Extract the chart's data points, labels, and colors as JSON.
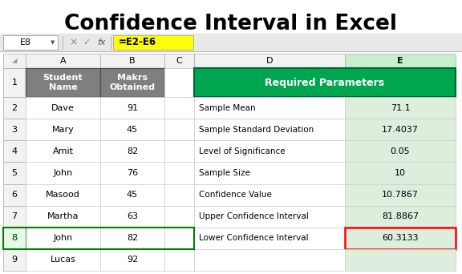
{
  "title": "Confidence Interval in Excel",
  "title_fontsize": 19,
  "title_fontweight": "bold",
  "bg_color": "#FFFFFF",
  "formula_bar_cell": "E8",
  "formula_bar_formula": "=E2-E6",
  "formula_bar_bg": "#FFFF00",
  "left_table": {
    "header_row": [
      "Student\nName",
      "Makrs\nObtained"
    ],
    "header_bg": "#7F7F7F",
    "header_fg": "#FFFFFF",
    "data": [
      [
        "Dave",
        "91"
      ],
      [
        "Mary",
        "45"
      ],
      [
        "Amit",
        "82"
      ],
      [
        "John",
        "76"
      ],
      [
        "Masood",
        "45"
      ],
      [
        "Martha",
        "63"
      ],
      [
        "John",
        "82"
      ],
      [
        "Lucas",
        "92"
      ]
    ],
    "row8_border_color": "#008000"
  },
  "right_table": {
    "header_text": "Required Parameters",
    "header_bg": "#00A550",
    "header_fg": "#FFFFFF",
    "data": [
      [
        "Sample Mean",
        "71.1"
      ],
      [
        "Sample Standard Deviation",
        "17.4037"
      ],
      [
        "Level of Significance",
        "0.05"
      ],
      [
        "Sample Size",
        "10"
      ],
      [
        "Confidence Value",
        "10.7867"
      ],
      [
        "Upper Confidence Interval",
        "81.8867"
      ],
      [
        "Lower Confidence Interval",
        "60.3133"
      ]
    ],
    "last_row_border_color": "#FF0000",
    "e_col_bg": "#DDEEDD"
  },
  "grid_color": "#CCCCCC",
  "col_header_bg": "#F2F2F2",
  "col_header_fg": "#000000",
  "selected_col_bg": "#C6EFCE",
  "row_num_bg": "#F2F2F2"
}
